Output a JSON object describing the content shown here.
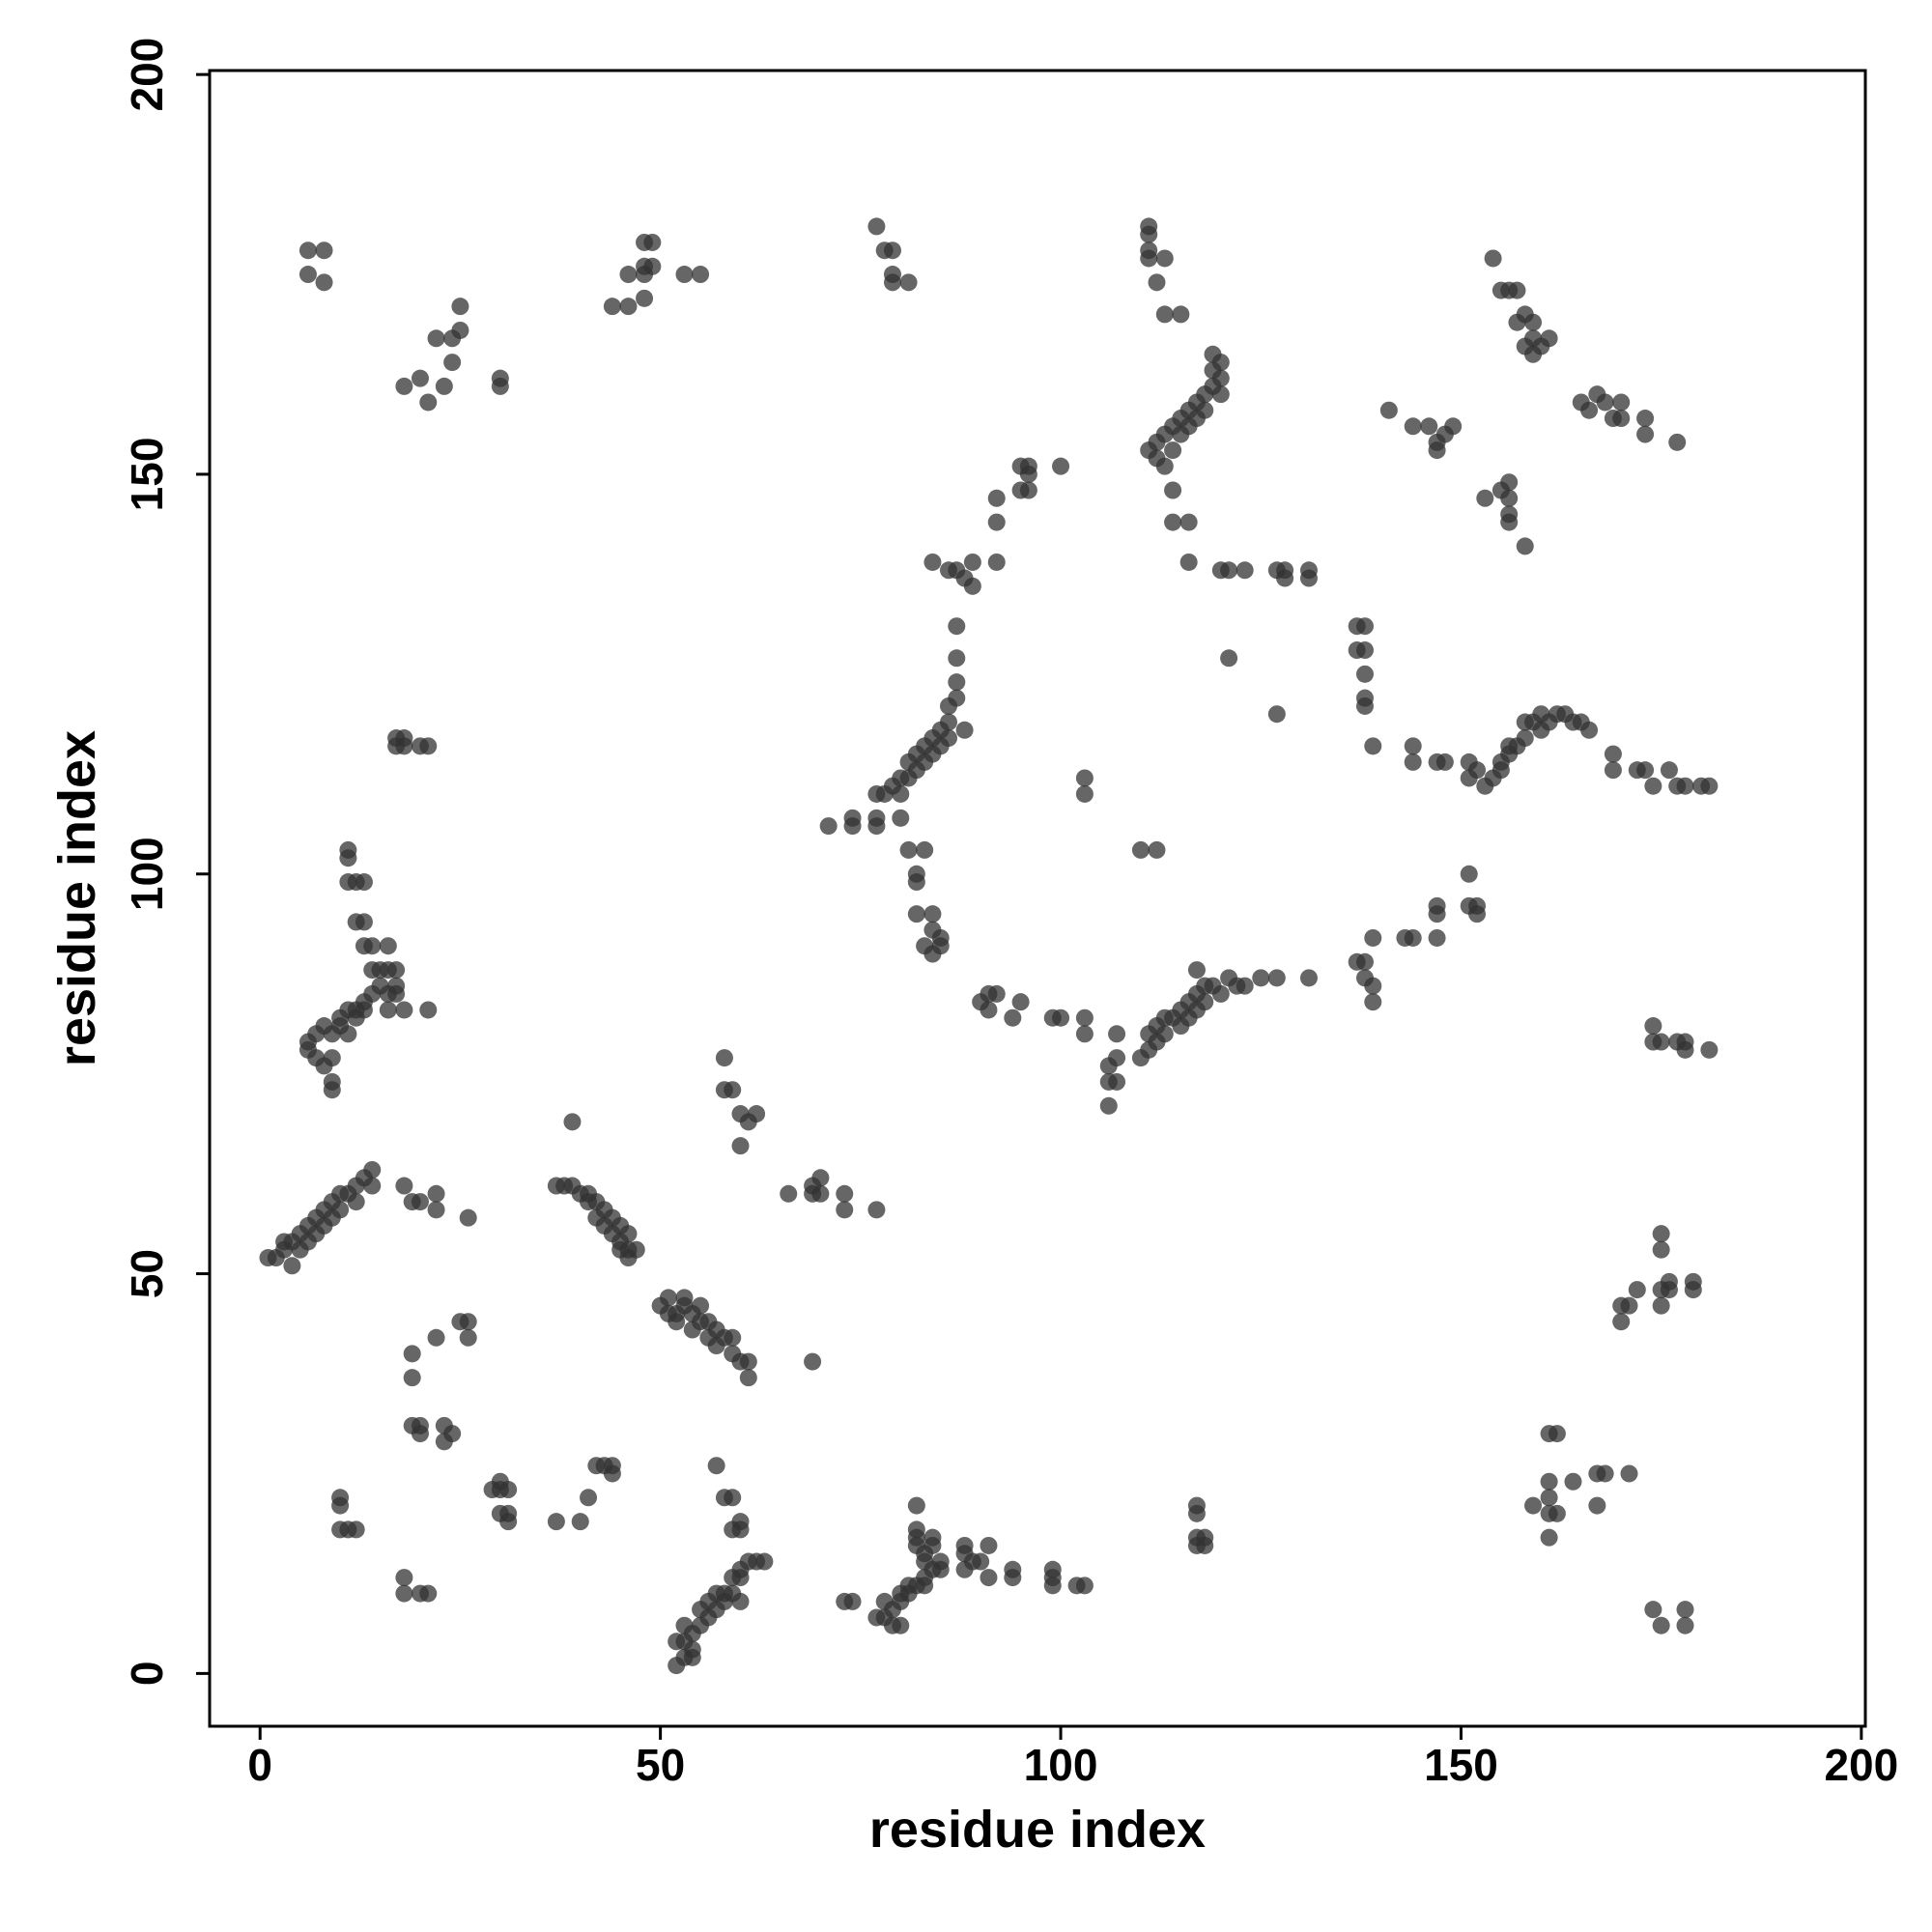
{
  "chart_data": {
    "type": "scatter",
    "xlabel": "residue index",
    "ylabel": "residue index",
    "color": "#333333",
    "xlim": [
      -6.3,
      200.5
    ],
    "ylim": [
      -6.6,
      200.5
    ],
    "xticks": [
      0,
      50,
      100,
      150,
      200
    ],
    "yticks": [
      0,
      50,
      100,
      150,
      200
    ],
    "x": [
      6,
      8,
      6,
      8,
      18,
      20,
      21,
      22,
      23,
      24,
      24,
      25,
      25,
      30,
      30,
      44,
      46,
      46,
      48,
      48,
      48,
      48,
      49,
      49,
      53,
      55,
      77,
      78,
      79,
      79,
      79,
      81,
      111,
      111,
      111,
      111,
      112,
      113,
      113,
      115,
      111,
      112,
      112,
      113,
      113,
      114,
      114,
      115,
      115,
      116,
      116,
      117,
      117,
      118,
      118,
      119,
      119,
      120,
      120,
      119,
      120,
      114,
      114,
      116,
      116,
      154,
      155,
      156,
      157,
      157,
      158,
      159,
      159,
      158,
      159,
      160,
      161,
      165,
      166,
      167,
      168,
      169,
      170,
      170,
      173,
      173,
      177,
      141,
      144,
      146,
      147,
      148,
      149,
      147,
      153,
      155,
      156,
      156,
      156,
      156,
      158,
      84,
      86,
      87,
      88,
      89,
      89,
      92,
      92,
      92,
      95,
      96,
      95,
      96,
      96,
      100,
      87,
      87,
      87,
      87,
      86,
      86,
      86,
      85,
      85,
      84,
      84,
      83,
      83,
      82,
      82,
      81,
      81,
      80,
      80,
      79,
      78,
      77,
      88,
      71,
      74,
      74,
      77,
      77,
      80,
      81,
      83,
      82,
      82,
      82,
      84,
      84,
      83,
      84,
      85,
      85,
      90,
      91,
      92,
      91,
      95,
      94,
      99,
      100,
      103,
      103,
      106,
      107,
      107,
      106,
      107,
      106,
      110,
      111,
      111,
      112,
      112,
      113,
      113,
      114,
      115,
      115,
      116,
      116,
      117,
      117,
      118,
      118,
      119,
      120,
      121,
      122,
      123,
      125,
      127,
      131,
      117,
      103,
      103,
      110,
      112,
      120,
      121,
      123,
      127,
      128,
      128,
      131,
      131,
      121,
      127,
      137,
      138,
      137,
      138,
      138,
      138,
      138,
      139,
      137,
      138,
      138,
      139,
      139,
      139,
      143,
      144,
      147,
      147,
      147,
      151,
      152,
      151,
      152,
      144,
      144,
      147,
      148,
      151,
      151,
      152,
      153,
      154,
      155,
      155,
      156,
      156,
      157,
      158,
      158,
      159,
      160,
      160,
      161,
      162,
      163,
      164,
      165,
      166,
      169,
      169,
      172,
      173,
      174,
      176,
      177,
      178,
      180,
      181,
      174,
      174,
      175,
      177,
      178,
      178,
      181,
      172,
      170,
      171,
      170,
      175,
      175,
      175,
      175,
      176,
      176,
      179,
      179,
      161,
      162,
      161,
      161,
      161,
      161,
      159,
      162,
      164,
      167,
      168,
      167,
      171,
      174,
      175,
      178,
      178,
      117,
      117,
      117,
      117,
      118,
      118,
      82,
      82,
      82,
      82,
      84,
      84,
      83,
      83,
      84,
      83,
      82,
      81,
      80,
      79,
      78,
      77,
      78,
      79,
      80,
      80,
      81,
      83,
      73,
      74,
      85,
      85,
      88,
      88,
      88,
      89,
      90,
      91,
      91,
      94,
      94,
      99,
      99,
      99,
      102,
      103,
      53,
      52,
      54,
      53,
      54,
      55,
      56,
      57,
      58,
      58,
      59,
      59,
      60,
      60,
      61,
      62,
      63,
      52,
      53,
      55,
      56,
      57,
      60,
      54,
      57,
      58,
      59,
      59,
      60,
      60,
      41,
      42,
      43,
      44,
      44,
      37,
      40,
      10,
      10,
      10,
      11,
      12,
      18,
      18,
      20,
      21,
      29,
      30,
      30,
      31,
      30,
      31,
      31,
      19,
      19,
      19,
      20,
      20,
      22,
      23,
      23,
      24,
      25,
      26,
      26,
      50,
      51,
      52,
      52,
      53,
      54,
      54,
      55,
      55,
      56,
      56,
      57,
      57,
      58,
      59,
      59,
      60,
      61,
      61,
      51,
      53,
      69,
      1,
      2,
      3,
      3,
      4,
      4,
      5,
      5,
      6,
      6,
      7,
      7,
      8,
      8,
      9,
      9,
      10,
      10,
      11,
      12,
      13,
      14,
      14,
      12,
      18,
      19,
      20,
      22,
      22,
      26,
      37,
      38,
      39,
      40,
      41,
      41,
      42,
      42,
      43,
      43,
      44,
      44,
      45,
      45,
      46,
      46,
      47,
      45,
      46,
      39,
      58,
      58,
      59,
      60,
      60,
      61,
      62,
      66,
      69,
      69,
      70,
      70,
      73,
      73,
      77,
      6,
      6,
      7,
      7,
      8,
      8,
      9,
      9,
      9,
      9,
      10,
      10,
      11,
      11,
      12,
      12,
      13,
      13,
      14,
      15,
      16,
      16,
      17,
      17,
      18,
      21,
      14,
      15,
      16,
      13,
      14,
      16,
      12,
      13,
      11,
      12,
      13,
      11,
      11,
      17,
      17,
      17,
      18,
      18,
      20,
      21
    ],
    "values": [
      178,
      178,
      175,
      174,
      161,
      162,
      159,
      167,
      161,
      164,
      167,
      168,
      171,
      162,
      161,
      171,
      171,
      175,
      172,
      175,
      176,
      179,
      179,
      176,
      175,
      175,
      181,
      178,
      178,
      175,
      174,
      174,
      181,
      180,
      178,
      177,
      174,
      177,
      170,
      170,
      153,
      154,
      152,
      155,
      151,
      156,
      153,
      157,
      155,
      158,
      156,
      159,
      157,
      160,
      158,
      161,
      163,
      162,
      160,
      165,
      164,
      148,
      144,
      144,
      139,
      177,
      173,
      173,
      173,
      169,
      170,
      169,
      167,
      166,
      165,
      166,
      167,
      159,
      158,
      160,
      159,
      157,
      159,
      157,
      157,
      155,
      154,
      158,
      156,
      156,
      154,
      155,
      156,
      153,
      147,
      148,
      149,
      147,
      145,
      144,
      141,
      139,
      138,
      138,
      137,
      136,
      139,
      139,
      144,
      147,
      148,
      148,
      151,
      151,
      150,
      151,
      131,
      127,
      124,
      122,
      121,
      119,
      117,
      118,
      116,
      117,
      115,
      116,
      114,
      115,
      113,
      114,
      112,
      112,
      110,
      111,
      110,
      110,
      118,
      106,
      106,
      107,
      107,
      106,
      107,
      103,
      103,
      100,
      99,
      95,
      95,
      93,
      91,
      90,
      92,
      91,
      84,
      85,
      85,
      83,
      84,
      82,
      82,
      82,
      82,
      80,
      76,
      77,
      80,
      74,
      74,
      71,
      77,
      78,
      80,
      79,
      81,
      80,
      82,
      82,
      83,
      81,
      84,
      82,
      85,
      83,
      86,
      84,
      86,
      85,
      87,
      86,
      86,
      87,
      87,
      87,
      88,
      112,
      110,
      103,
      103,
      138,
      138,
      138,
      138,
      138,
      137,
      138,
      137,
      127,
      120,
      131,
      131,
      128,
      128,
      125,
      122,
      121,
      116,
      89,
      89,
      87,
      86,
      84,
      92,
      92,
      92,
      92,
      95,
      96,
      96,
      96,
      100,
      95,
      116,
      114,
      114,
      114,
      114,
      112,
      113,
      111,
      112,
      113,
      114,
      115,
      116,
      116,
      117,
      119,
      119,
      118,
      120,
      119,
      120,
      120,
      119,
      119,
      118,
      115,
      113,
      113,
      113,
      111,
      113,
      111,
      111,
      111,
      111,
      81,
      79,
      79,
      79,
      78,
      79,
      78,
      48,
      46,
      46,
      44,
      55,
      53,
      48,
      46,
      49,
      48,
      49,
      48,
      30,
      30,
      24,
      22,
      20,
      17,
      21,
      20,
      24,
      25,
      25,
      21,
      25,
      8,
      6,
      8,
      6,
      21,
      20,
      17,
      16,
      17,
      16,
      21,
      18,
      17,
      16,
      17,
      16,
      15,
      14,
      13,
      12,
      11,
      10,
      9,
      8,
      7,
      7,
      9,
      6,
      6,
      10,
      11,
      11,
      9,
      9,
      14,
      13,
      13,
      15,
      16,
      14,
      14,
      16,
      12,
      13,
      12,
      12,
      13,
      11,
      11,
      11,
      2,
      1,
      2,
      4,
      5,
      6,
      7,
      8,
      9,
      10,
      10,
      12,
      12,
      13,
      14,
      14,
      14,
      4,
      6,
      8,
      9,
      10,
      9,
      3,
      26,
      22,
      22,
      18,
      19,
      18,
      22,
      26,
      26,
      26,
      25,
      19,
      19,
      22,
      21,
      18,
      18,
      18,
      12,
      10,
      10,
      10,
      23,
      24,
      23,
      23,
      20,
      20,
      19,
      37,
      40,
      31,
      31,
      30,
      42,
      31,
      29,
      30,
      44,
      44,
      42,
      46,
      47,
      45,
      44,
      46,
      43,
      45,
      46,
      44,
      42,
      44,
      43,
      41,
      42,
      40,
      42,
      39,
      39,
      37,
      45,
      47,
      39,
      52,
      52,
      54,
      53,
      54,
      51,
      55,
      53,
      56,
      54,
      57,
      55,
      58,
      56,
      59,
      57,
      60,
      58,
      60,
      61,
      62,
      63,
      61,
      59,
      61,
      59,
      59,
      60,
      58,
      57,
      61,
      61,
      61,
      60,
      60,
      59,
      59,
      57,
      58,
      56,
      57,
      55,
      56,
      54,
      55,
      53,
      53,
      53,
      52,
      69,
      77,
      73,
      73,
      70,
      66,
      69,
      70,
      60,
      60,
      61,
      62,
      60,
      60,
      58,
      58,
      79,
      78,
      77,
      80,
      76,
      81,
      77,
      74,
      73,
      80,
      82,
      81,
      83,
      80,
      83,
      82,
      84,
      83,
      85,
      86,
      85,
      83,
      86,
      85,
      83,
      83,
      88,
      88,
      88,
      91,
      91,
      91,
      94,
      94,
      99,
      99,
      99,
      103,
      102,
      88,
      117,
      116,
      117,
      116,
      116,
      116
    ]
  }
}
